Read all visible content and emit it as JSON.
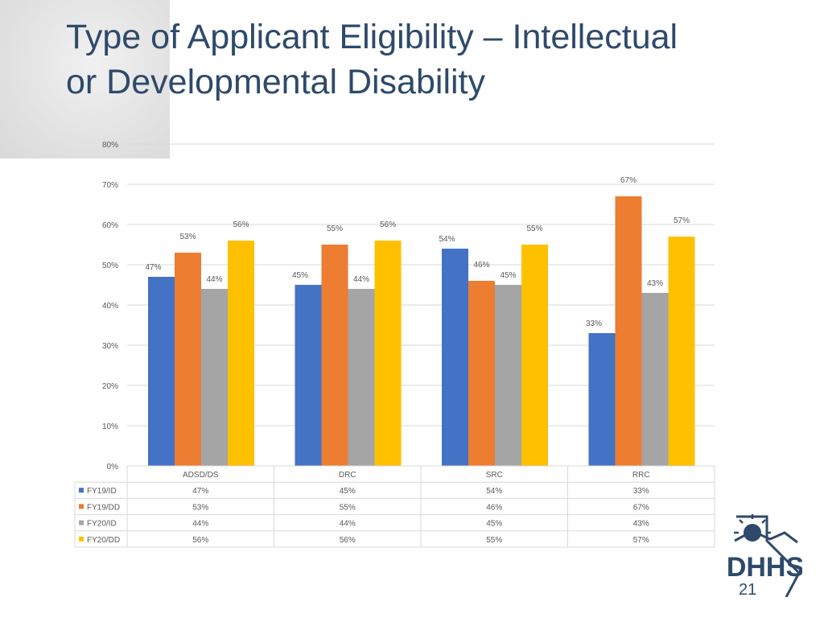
{
  "slide": {
    "title_line1": "Type of Applicant Eligibility – Intellectual",
    "title_line2": "or Developmental Disability",
    "page_number": "21"
  },
  "logo": {
    "name": "dhhs-logo",
    "text": "DHHS"
  },
  "colors": {
    "title": "#2e4a6a",
    "grid": "#d9d9d9",
    "axis_text": "#595959"
  },
  "chart_data": {
    "type": "bar",
    "title": "",
    "xlabel": "",
    "ylabel": "",
    "ylim": [
      0,
      80
    ],
    "yticks": [
      0,
      10,
      20,
      30,
      40,
      50,
      60,
      70,
      80
    ],
    "ytick_labels": [
      "0%",
      "10%",
      "20%",
      "30%",
      "40%",
      "50%",
      "60%",
      "70%",
      "80%"
    ],
    "grid": true,
    "legend": "data-table-below",
    "categories": [
      "ADSD/DS",
      "DRC",
      "SRC",
      "RRC"
    ],
    "series": [
      {
        "name": "FY19/ID",
        "color": "#4472c4",
        "values": [
          47,
          45,
          54,
          33
        ],
        "labels": [
          "47%",
          "45%",
          "54%",
          "33%"
        ]
      },
      {
        "name": "FY19/DD",
        "color": "#ed7d31",
        "values": [
          53,
          55,
          46,
          67
        ],
        "labels": [
          "53%",
          "55%",
          "46%",
          "67%"
        ]
      },
      {
        "name": "FY20/ID",
        "color": "#a5a5a5",
        "values": [
          44,
          44,
          45,
          43
        ],
        "labels": [
          "44%",
          "44%",
          "45%",
          "43%"
        ]
      },
      {
        "name": "FY20/DD",
        "color": "#ffc000",
        "values": [
          56,
          56,
          55,
          57
        ],
        "labels": [
          "56%",
          "56%",
          "55%",
          "57%"
        ]
      }
    ]
  }
}
